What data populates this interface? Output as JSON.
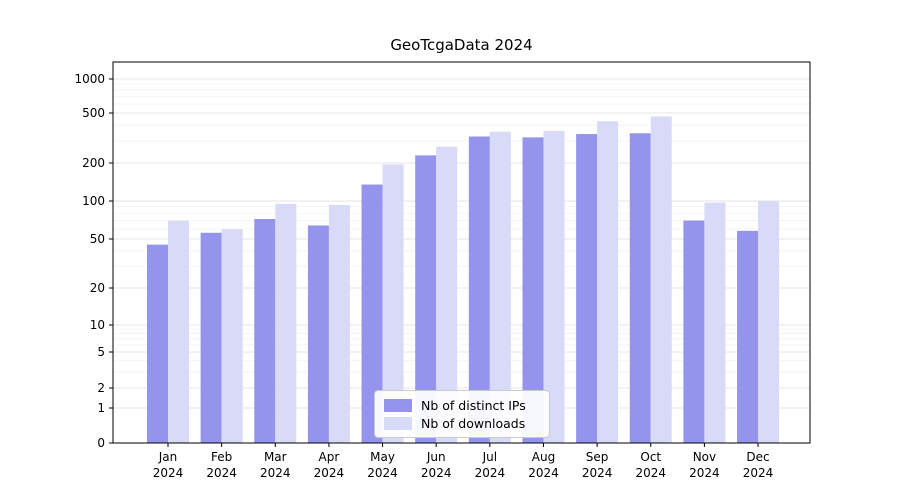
{
  "chart_data": {
    "type": "bar",
    "title": "GeoTcgaData 2024",
    "categories": [
      "Jan",
      "Feb",
      "Mar",
      "Apr",
      "May",
      "Jun",
      "Jul",
      "Aug",
      "Sep",
      "Oct",
      "Nov",
      "Dec"
    ],
    "category_year": "2024",
    "series": [
      {
        "name": "Nb of distinct IPs",
        "color": "#9494ec",
        "values": [
          45,
          56,
          72,
          64,
          135,
          230,
          325,
          320,
          340,
          345,
          70,
          58
        ]
      },
      {
        "name": "Nb of downloads",
        "color": "#d9d9f8",
        "values": [
          70,
          60,
          95,
          93,
          195,
          270,
          355,
          360,
          430,
          470,
          97,
          100
        ]
      }
    ],
    "yticks": [
      0,
      1,
      2,
      5,
      10,
      20,
      50,
      100,
      200,
      500,
      1000
    ],
    "scale": "symlog",
    "ylim": [
      0,
      1000
    ],
    "grid": true,
    "legend_position": "lower center"
  }
}
